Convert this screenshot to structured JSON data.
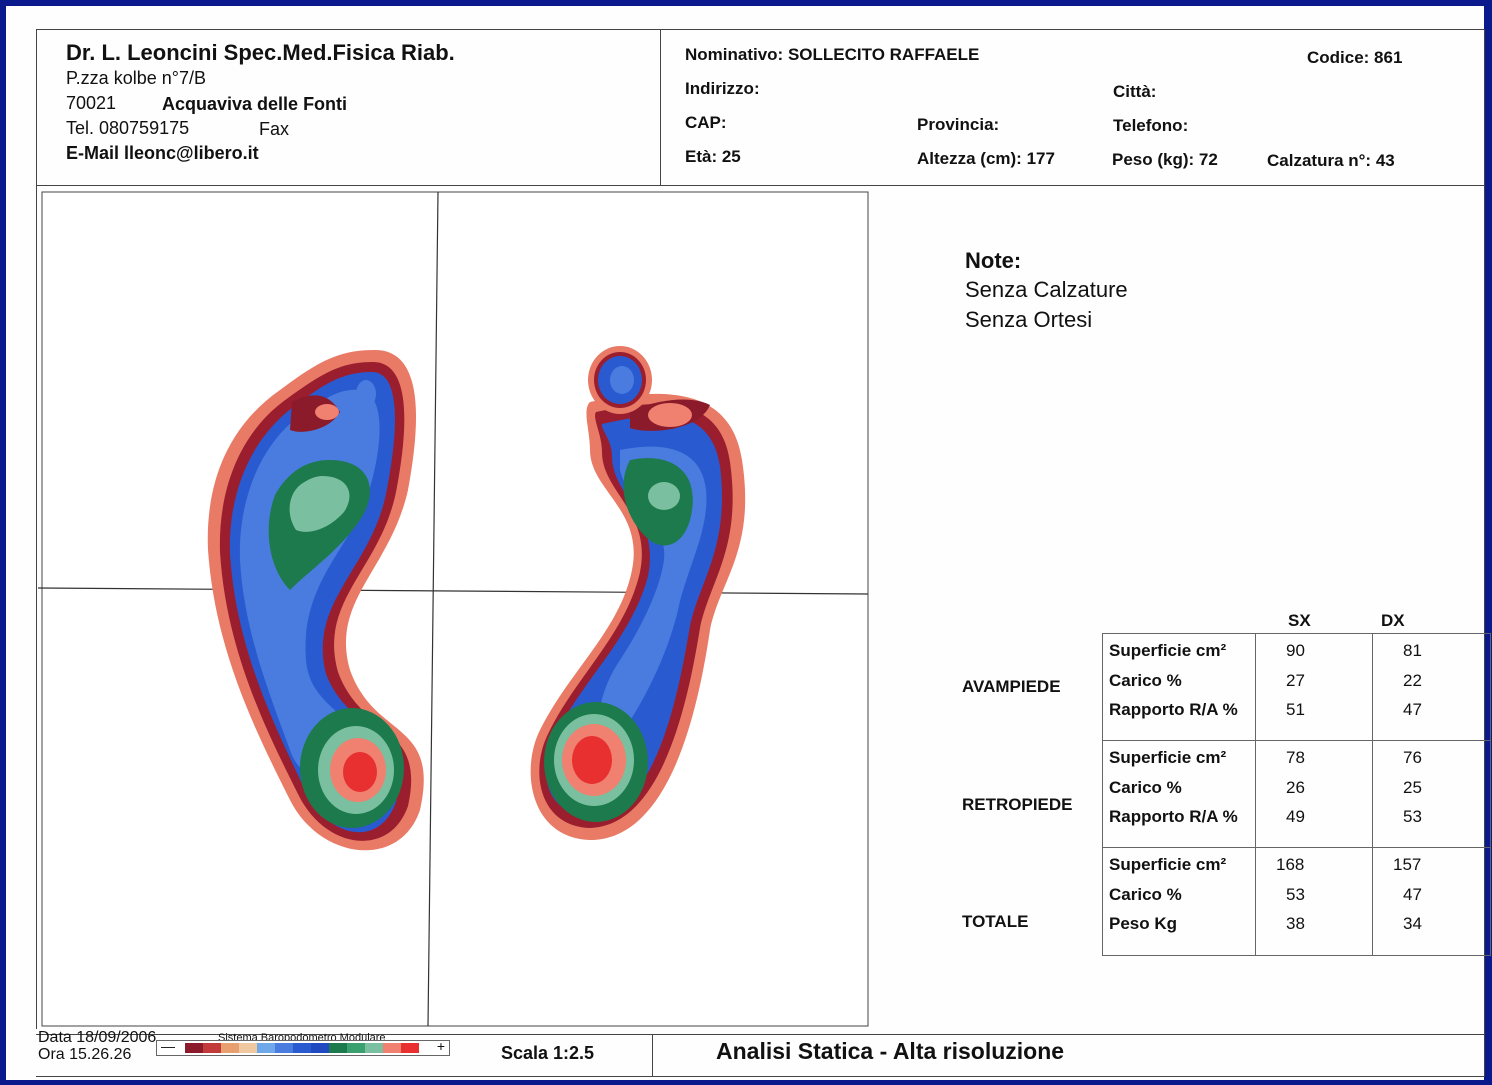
{
  "header": {
    "doctor": "Dr. L. Leoncini Spec.Med.Fisica Riab.",
    "address_line": "P.zza kolbe  n°7/B",
    "zip": "70021",
    "city": "Acquaviva delle Fonti",
    "tel": "Tel. 080759175",
    "fax": "Fax",
    "email": "E-Mail lleonc@libero.it"
  },
  "patient": {
    "nominativo": "Nominativo: SOLLECITO RAFFAELE",
    "codice": "Codice: 861",
    "indirizzo": "Indirizzo:",
    "citta": "Città:",
    "cap": "CAP:",
    "provincia": "Provincia:",
    "telefono": "Telefono:",
    "eta": "Età: 25",
    "altezza": "Altezza (cm): 177",
    "peso": "Peso (kg): 72",
    "calzatura": "Calzatura n°: 43"
  },
  "notes": {
    "title": "Note:",
    "line1": "Senza Calzature",
    "line2": "Senza Ortesi"
  },
  "stats": {
    "col_sx": "SX",
    "col_dx": "DX",
    "sections": [
      {
        "name": "AVAMPIEDE",
        "labels": [
          "Superficie  cm²",
          "Carico       %",
          "Rapporto R/A %"
        ],
        "sx": [
          "90",
          "27",
          "51"
        ],
        "dx": [
          "81",
          "22",
          "47"
        ]
      },
      {
        "name": "RETROPIEDE",
        "labels": [
          "Superficie  cm²",
          "Carico       %",
          "Rapporto R/A %"
        ],
        "sx": [
          "78",
          "26",
          "49"
        ],
        "dx": [
          "76",
          "25",
          "53"
        ]
      },
      {
        "name": "TOTALE",
        "labels": [
          "Superficie  cm²",
          "Carico       %",
          "Peso        Kg"
        ],
        "sx": [
          "168",
          "53",
          "38"
        ],
        "dx": [
          "157",
          "47",
          "34"
        ]
      }
    ]
  },
  "footer": {
    "data": "Data 18/09/2006",
    "ora": "Ora 15.26.26",
    "system": "Sistema Baropodometro Modulare",
    "minus": "—",
    "plus": "+",
    "scala": "Scala 1:2.5",
    "title": "Analisi Statica - Alta risoluzione"
  },
  "colors": {
    "background": "#0a1a8c",
    "legend": [
      "#8b1a2a",
      "#c23a3a",
      "#e8a070",
      "#f0c8a0",
      "#6fa8e8",
      "#4a7ce0",
      "#2a5ad0",
      "#2048c0",
      "#1c7a4c",
      "#3aa070",
      "#7ac0a0",
      "#f08070",
      "#e83030"
    ]
  }
}
